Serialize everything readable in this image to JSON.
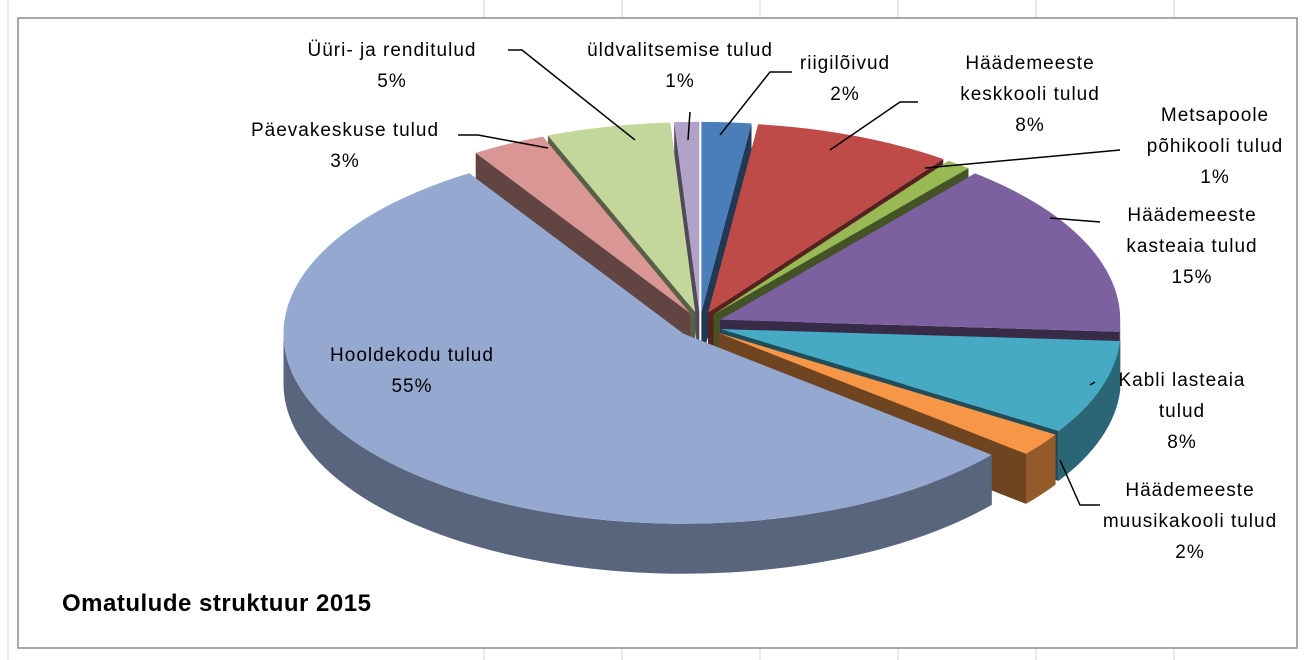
{
  "chart_data": {
    "type": "pie",
    "title": "Omatulude struktuur 2015",
    "categories": [
      "riigilõivud",
      "Häädemeeste keskkooli tulud",
      "Metsapoole põhikooli tulud",
      "Häädemeeste kasteaia tulud",
      "Kabli lasteaia tulud",
      "Häädemeeste muusikakooli tulud",
      "Hooldekodu tulud",
      "Päevakeskuse tulud",
      "Üüri- ja renditulud",
      "üldvalitsemise tulud"
    ],
    "values": [
      2,
      8,
      1,
      15,
      8,
      2,
      55,
      3,
      5,
      1
    ],
    "value_labels": [
      "2%",
      "8%",
      "1%",
      "15%",
      "8%",
      "2%",
      "55%",
      "3%",
      "5%",
      "1%"
    ],
    "colors": [
      "#4a7ebb",
      "#be4b48",
      "#98b954",
      "#7d60a0",
      "#46aac5",
      "#f79646",
      "#94a8d0",
      "#d99694",
      "#c3d69b",
      "#b3a2c7"
    ]
  }
}
